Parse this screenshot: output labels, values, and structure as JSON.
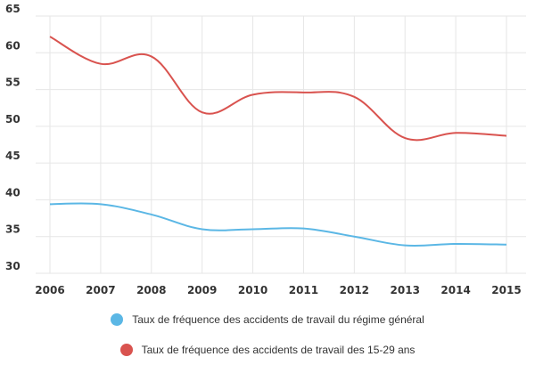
{
  "chart_data": {
    "type": "line",
    "title": "",
    "xlabel": "",
    "ylabel": "",
    "x": [
      "2006",
      "2007",
      "2008",
      "2009",
      "2010",
      "2011",
      "2012",
      "2013",
      "2014",
      "2015"
    ],
    "ylim": [
      30,
      65
    ],
    "yticks": [
      "30",
      "35",
      "40",
      "45",
      "50",
      "55",
      "60",
      "65"
    ],
    "grid": true,
    "legend_position": "bottom",
    "series": [
      {
        "name": "Taux de fréquence des accidents de travail du régime général",
        "color": "#5bb7e5",
        "values": [
          39.4,
          39.4,
          38.0,
          36.0,
          36.0,
          36.1,
          35.0,
          33.8,
          34.0,
          33.9
        ]
      },
      {
        "name": "Taux de fréquence des accidents de travail des 15-29 ans",
        "color": "#d9534f",
        "values": [
          62.2,
          58.5,
          59.5,
          51.9,
          54.3,
          54.6,
          54.0,
          48.4,
          49.1,
          48.7
        ]
      }
    ]
  }
}
